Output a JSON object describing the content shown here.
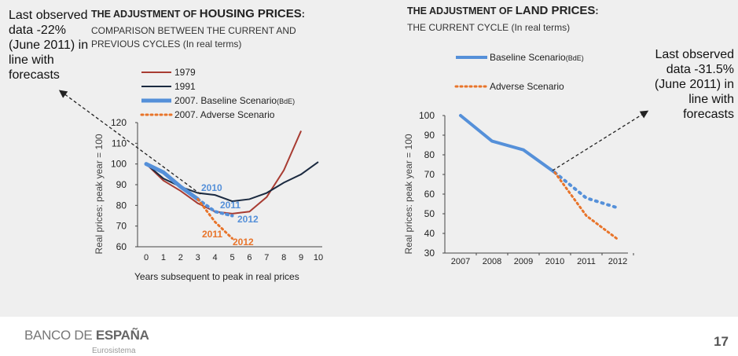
{
  "footer": {
    "brand_light": "BANCO DE ",
    "brand_bold": "ESPAÑA",
    "brand_sub": "Eurosistema",
    "page_number": "17"
  },
  "annotations": {
    "left": "Last observed data -22% (June 2011) in line with forecasts",
    "right": "Last observed data -31.5% (June 2011) in line with forecasts"
  },
  "left_panel": {
    "title_pre": "THE ADJUSTMENT OF ",
    "title_big": "HOUSING PRICES",
    "title_post": ":",
    "subtitle_line1": "COMPARISON BETWEEN THE CURRENT AND",
    "subtitle_line2": "PREVIOUS CYCLES",
    "subtitle_note": " (In real terms)"
  },
  "right_panel": {
    "title_pre": "THE ADJUSTMENT OF ",
    "title_big": "LAND PRICES",
    "title_post": ":",
    "subtitle": "THE CURRENT CYCLE",
    "subtitle_note": " (In real terms)"
  },
  "colors": {
    "c1979": "#a83c32",
    "c1991": "#1b2a40",
    "baseline": "#5590d9",
    "adverse": "#e8742a"
  },
  "chart_data": [
    {
      "type": "line",
      "title": "THE ADJUSTMENT OF HOUSING PRICES",
      "xlabel": "Years subsequent to peak in real prices",
      "ylabel": "Real prices: peak  year = 100",
      "x": [
        0,
        1,
        2,
        3,
        4,
        5,
        6,
        7,
        8,
        9,
        10
      ],
      "xlim": [
        0,
        10
      ],
      "ylim": [
        60,
        120
      ],
      "yticks": [
        60,
        70,
        80,
        90,
        100,
        110,
        120
      ],
      "series": [
        {
          "name": "1979",
          "x": [
            0,
            1,
            2,
            3,
            4,
            5,
            6,
            7,
            8,
            9
          ],
          "values": [
            100,
            92,
            87,
            81,
            77,
            76,
            77,
            84,
            97,
            116
          ]
        },
        {
          "name": "1991",
          "x": [
            0,
            1,
            2,
            3,
            4,
            5,
            6,
            7,
            8,
            9,
            10
          ],
          "values": [
            100,
            93,
            89,
            86,
            85,
            82,
            83,
            86,
            91,
            95,
            101
          ]
        },
        {
          "name": "2007. Baseline Scenario",
          "legend_sup": "(BdE)",
          "x": [
            0,
            1,
            2,
            3
          ],
          "values": [
            100,
            96,
            89,
            83
          ]
        },
        {
          "name": "2007. Baseline Scenario (dotted)",
          "x": [
            3,
            4,
            5
          ],
          "values": [
            83,
            77,
            75
          ]
        },
        {
          "name": "2007. Adverse Scenario",
          "x": [
            3,
            4,
            5
          ],
          "values": [
            83,
            72,
            64
          ]
        }
      ],
      "data_labels": [
        {
          "text": "2010",
          "series": "baseline"
        },
        {
          "text": "2011",
          "series": "baseline"
        },
        {
          "text": "2012",
          "series": "baseline"
        },
        {
          "text": "2011",
          "series": "adverse"
        },
        {
          "text": "2012",
          "series": "adverse"
        }
      ]
    },
    {
      "type": "line",
      "title": "THE ADJUSTMENT OF LAND PRICES",
      "xlabel": "",
      "ylabel": "Real prices: peak  year = 100",
      "categories": [
        "2007",
        "2008",
        "2009",
        "2010",
        "2011",
        "2012"
      ],
      "ylim": [
        30,
        100
      ],
      "yticks": [
        30,
        40,
        50,
        60,
        70,
        80,
        90,
        100
      ],
      "series": [
        {
          "name": "Baseline Scenario",
          "legend_sup": "(BdE)",
          "x": [
            0,
            1,
            2,
            3
          ],
          "values": [
            100,
            87,
            82.5,
            71
          ]
        },
        {
          "name": "Baseline Scenario (dotted)",
          "x": [
            3,
            4,
            5
          ],
          "values": [
            71,
            58,
            53
          ]
        },
        {
          "name": "Adverse Scenario",
          "x": [
            3,
            4,
            5
          ],
          "values": [
            71,
            49,
            37
          ]
        }
      ]
    }
  ]
}
